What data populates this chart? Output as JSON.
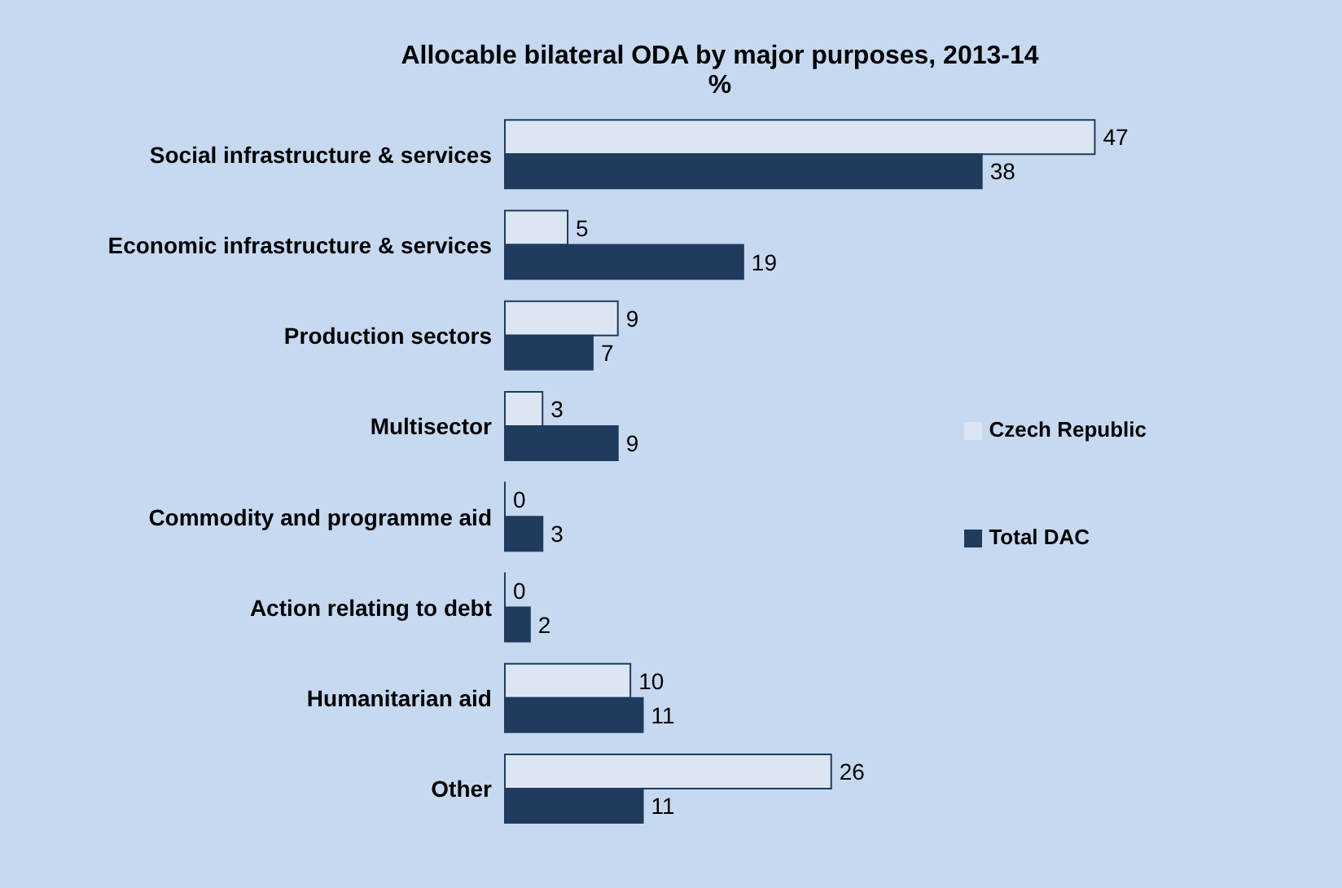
{
  "chart_data": {
    "type": "bar",
    "orientation": "horizontal",
    "title": "Allocable bilateral ODA by major purposes, 2013-14",
    "subtitle": "%",
    "categories": [
      "Social infrastructure & services",
      "Economic infrastructure & services",
      "Production sectors",
      "Multisector",
      "Commodity and programme aid",
      "Action relating to debt",
      "Humanitarian aid",
      "Other"
    ],
    "series": [
      {
        "name": "Czech Republic",
        "color": "#dce6f2",
        "values": [
          47,
          5,
          9,
          3,
          0,
          0,
          10,
          26
        ]
      },
      {
        "name": "Total DAC",
        "color": "#1f3b5e",
        "values": [
          38,
          19,
          7,
          9,
          3,
          2,
          11,
          11
        ]
      }
    ],
    "data_labels": true,
    "legend": "right",
    "grid": false
  }
}
